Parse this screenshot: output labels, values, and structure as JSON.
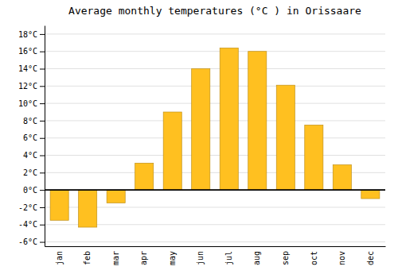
{
  "chart_data": {
    "type": "bar",
    "title": "Average monthly temperatures (°C ) in Orissaare",
    "categories": [
      "jan",
      "feb",
      "mar",
      "apr",
      "may",
      "jun",
      "jul",
      "aug",
      "sep",
      "oct",
      "nov",
      "dec"
    ],
    "values": [
      -3.5,
      -4.3,
      -1.5,
      3.1,
      9.0,
      14.0,
      16.4,
      16.0,
      12.1,
      7.5,
      2.9,
      -1.0
    ],
    "color": "#FFC020",
    "ylim": [
      -6.5,
      19
    ],
    "yticks": [
      {
        "value": -6,
        "label": "-6°C"
      },
      {
        "value": -4,
        "label": "-4°C"
      },
      {
        "value": -2,
        "label": "-2°C"
      },
      {
        "value": 0,
        "label": "0°C"
      },
      {
        "value": 2,
        "label": "2°C"
      },
      {
        "value": 4,
        "label": "4°C"
      },
      {
        "value": 6,
        "label": "6°C"
      },
      {
        "value": 8,
        "label": "8°C"
      },
      {
        "value": 10,
        "label": "10°C"
      },
      {
        "value": 12,
        "label": "12°C"
      },
      {
        "value": 14,
        "label": "14°C"
      },
      {
        "value": 16,
        "label": "16°C"
      },
      {
        "value": 18,
        "label": "18°C"
      }
    ],
    "grid": true
  }
}
